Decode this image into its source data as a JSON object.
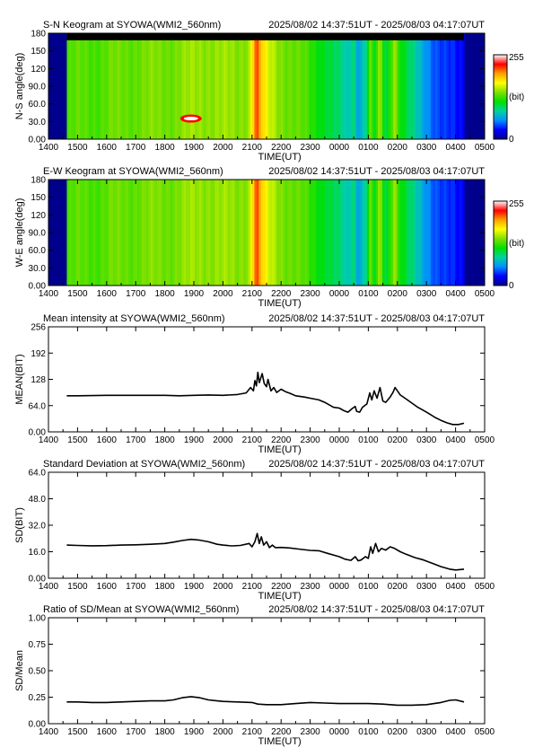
{
  "colors": {
    "axis": "#000000",
    "line": "#000000",
    "keogram_stops": [
      "#00008c",
      "#0000ff",
      "#0090ff",
      "#00d2a0",
      "#00e000",
      "#80e000",
      "#ffff00",
      "#ffa000",
      "#ff0000",
      "#ffffff"
    ]
  },
  "chart_data": [
    {
      "type": "heatmap",
      "title": "S-N Keogram at SYOWA(WMI2_560nm)",
      "time_range": "2025/08/02 14:37:51UT - 2025/08/03 04:17:07UT",
      "xlabel": "TIME(UT)",
      "ylabel": "N-S angle(deg)",
      "x_ticks": [
        "1400",
        "1500",
        "1600",
        "1700",
        "1800",
        "1900",
        "2000",
        "2100",
        "2200",
        "2300",
        "0000",
        "0100",
        "0200",
        "0300",
        "0400",
        "0500"
      ],
      "xlim_hours": [
        14,
        29
      ],
      "data_x_hours": [
        14.63,
        28.29
      ],
      "y_ticks": [
        "0.00",
        "30.0",
        "60.0",
        "90.0",
        "120",
        "150",
        "180"
      ],
      "ylim": [
        0,
        180
      ],
      "missing_y_above": 168,
      "colorbar": {
        "min_label": "0",
        "mid_label": "(bit)",
        "max_label": "255",
        "min": 0,
        "max": 255
      },
      "profile": [
        [
          14.63,
          88
        ],
        [
          15.0,
          90
        ],
        [
          16.0,
          92
        ],
        [
          17.0,
          95
        ],
        [
          18.0,
          96
        ],
        [
          18.5,
          98
        ],
        [
          19.0,
          100
        ],
        [
          19.5,
          102
        ],
        [
          20.0,
          100
        ],
        [
          20.5,
          98
        ],
        [
          20.9,
          104
        ],
        [
          21.0,
          120
        ],
        [
          21.15,
          150
        ],
        [
          21.25,
          135
        ],
        [
          21.4,
          120
        ],
        [
          21.6,
          108
        ],
        [
          22.0,
          100
        ],
        [
          22.5,
          92
        ],
        [
          23.0,
          86
        ],
        [
          23.5,
          76
        ],
        [
          24.0,
          62
        ],
        [
          24.3,
          52
        ],
        [
          24.5,
          70
        ],
        [
          24.6,
          48
        ],
        [
          24.9,
          58
        ],
        [
          25.05,
          95
        ],
        [
          25.2,
          72
        ],
        [
          25.4,
          100
        ],
        [
          25.6,
          68
        ],
        [
          25.9,
          105
        ],
        [
          26.1,
          82
        ],
        [
          26.4,
          65
        ],
        [
          26.8,
          48
        ],
        [
          27.2,
          36
        ],
        [
          27.6,
          26
        ],
        [
          28.0,
          20
        ],
        [
          28.29,
          18
        ]
      ],
      "hot_spot": {
        "x_hours": 18.9,
        "y_deg": 35
      }
    },
    {
      "type": "heatmap",
      "title": "E-W Keogram at SYOWA(WMI2_560nm)",
      "time_range": "2025/08/02 14:37:51UT - 2025/08/03 04:17:07UT",
      "xlabel": "TIME(UT)",
      "ylabel": "W-E angle(deg)",
      "x_ticks": [
        "1400",
        "1500",
        "1600",
        "1700",
        "1800",
        "1900",
        "2000",
        "2100",
        "2200",
        "2300",
        "0000",
        "0100",
        "0200",
        "0300",
        "0400",
        "0500"
      ],
      "xlim_hours": [
        14,
        29
      ],
      "data_x_hours": [
        14.63,
        28.29
      ],
      "y_ticks": [
        "0.00",
        "30.0",
        "60.0",
        "90.0",
        "120",
        "150",
        "180"
      ],
      "ylim": [
        0,
        180
      ],
      "colorbar": {
        "min_label": "0",
        "mid_label": "(bit)",
        "max_label": "255",
        "min": 0,
        "max": 255
      }
    },
    {
      "type": "line",
      "title": "Mean intensity at SYOWA(WMI2_560nm)",
      "time_range": "2025/08/02 14:37:51UT - 2025/08/03 04:17:07UT",
      "xlabel": "TIME(UT)",
      "ylabel": "MEAN(BIT)",
      "x_ticks": [
        "1400",
        "1500",
        "1600",
        "1700",
        "1800",
        "1900",
        "2000",
        "2100",
        "2200",
        "2300",
        "0000",
        "0100",
        "0200",
        "0300",
        "0400",
        "0500"
      ],
      "xlim_hours": [
        14,
        29
      ],
      "y_ticks": [
        "0.00",
        "64.0",
        "128",
        "192",
        "256"
      ],
      "ylim": [
        0,
        256
      ],
      "series": [
        {
          "points": [
            [
              14.63,
              88
            ],
            [
              15.0,
              88
            ],
            [
              16.0,
              89
            ],
            [
              17.0,
              89
            ],
            [
              18.0,
              89
            ],
            [
              18.5,
              88
            ],
            [
              19.0,
              89
            ],
            [
              19.5,
              90
            ],
            [
              20.0,
              89
            ],
            [
              20.5,
              91
            ],
            [
              20.8,
              95
            ],
            [
              20.95,
              108
            ],
            [
              21.05,
              100
            ],
            [
              21.1,
              125
            ],
            [
              21.15,
              112
            ],
            [
              21.2,
              145
            ],
            [
              21.25,
              120
            ],
            [
              21.35,
              142
            ],
            [
              21.42,
              118
            ],
            [
              21.5,
              110
            ],
            [
              21.55,
              128
            ],
            [
              21.65,
              100
            ],
            [
              21.75,
              108
            ],
            [
              21.85,
              96
            ],
            [
              22.0,
              104
            ],
            [
              22.15,
              98
            ],
            [
              22.3,
              94
            ],
            [
              22.5,
              88
            ],
            [
              22.8,
              85
            ],
            [
              23.0,
              82
            ],
            [
              23.3,
              78
            ],
            [
              23.5,
              72
            ],
            [
              23.8,
              60
            ],
            [
              24.0,
              58
            ],
            [
              24.15,
              52
            ],
            [
              24.3,
              48
            ],
            [
              24.45,
              57
            ],
            [
              24.55,
              62
            ],
            [
              24.6,
              50
            ],
            [
              24.7,
              48
            ],
            [
              24.8,
              60
            ],
            [
              24.95,
              68
            ],
            [
              25.05,
              95
            ],
            [
              25.12,
              78
            ],
            [
              25.2,
              100
            ],
            [
              25.3,
              82
            ],
            [
              25.4,
              108
            ],
            [
              25.5,
              75
            ],
            [
              25.6,
              72
            ],
            [
              25.75,
              85
            ],
            [
              25.85,
              96
            ],
            [
              25.92,
              108
            ],
            [
              26.0,
              100
            ],
            [
              26.1,
              90
            ],
            [
              26.3,
              80
            ],
            [
              26.5,
              70
            ],
            [
              26.7,
              60
            ],
            [
              26.9,
              52
            ],
            [
              27.1,
              44
            ],
            [
              27.3,
              35
            ],
            [
              27.5,
              28
            ],
            [
              27.7,
              22
            ],
            [
              27.9,
              18
            ],
            [
              28.1,
              18
            ],
            [
              28.29,
              21
            ]
          ]
        }
      ]
    },
    {
      "type": "line",
      "title": "Standard Deviation at SYOWA(WMI2_560nm)",
      "time_range": "2025/08/02 14:37:51UT - 2025/08/03 04:17:07UT",
      "xlabel": "TIME(UT)",
      "ylabel": "SD(BIT)",
      "x_ticks": [
        "1400",
        "1500",
        "1600",
        "1700",
        "1800",
        "1900",
        "2000",
        "2100",
        "2200",
        "2300",
        "0000",
        "0100",
        "0200",
        "0300",
        "0400",
        "0500"
      ],
      "xlim_hours": [
        14,
        29
      ],
      "y_ticks": [
        "0.00",
        "16.0",
        "32.0",
        "48.0",
        "64.0"
      ],
      "ylim": [
        0,
        64
      ],
      "series": [
        {
          "points": [
            [
              14.63,
              20
            ],
            [
              15.0,
              19.8
            ],
            [
              15.5,
              19.6
            ],
            [
              16.0,
              19.7
            ],
            [
              16.5,
              20
            ],
            [
              17.0,
              20.2
            ],
            [
              17.5,
              20.5
            ],
            [
              18.0,
              21
            ],
            [
              18.3,
              21.8
            ],
            [
              18.6,
              22.8
            ],
            [
              18.9,
              23.5
            ],
            [
              19.2,
              23
            ],
            [
              19.5,
              22
            ],
            [
              19.8,
              20.5
            ],
            [
              20.0,
              20
            ],
            [
              20.3,
              19.5
            ],
            [
              20.6,
              19.8
            ],
            [
              20.9,
              21
            ],
            [
              21.0,
              19
            ],
            [
              21.1,
              22
            ],
            [
              21.18,
              27
            ],
            [
              21.25,
              21
            ],
            [
              21.32,
              25
            ],
            [
              21.4,
              20
            ],
            [
              21.5,
              22
            ],
            [
              21.6,
              18.5
            ],
            [
              21.7,
              20
            ],
            [
              21.8,
              18.5
            ],
            [
              22.0,
              18.6
            ],
            [
              22.3,
              18.3
            ],
            [
              22.6,
              17.6
            ],
            [
              23.0,
              16.8
            ],
            [
              23.3,
              16.6
            ],
            [
              23.6,
              15
            ],
            [
              24.0,
              13
            ],
            [
              24.2,
              11.5
            ],
            [
              24.4,
              10.8
            ],
            [
              24.55,
              13
            ],
            [
              24.65,
              10.5
            ],
            [
              24.75,
              11
            ],
            [
              24.9,
              13
            ],
            [
              25.0,
              12
            ],
            [
              25.08,
              19
            ],
            [
              25.15,
              15
            ],
            [
              25.25,
              21
            ],
            [
              25.35,
              16
            ],
            [
              25.45,
              18
            ],
            [
              25.6,
              17
            ],
            [
              25.75,
              19
            ],
            [
              25.9,
              18
            ],
            [
              26.1,
              16
            ],
            [
              26.3,
              14.5
            ],
            [
              26.6,
              12.5
            ],
            [
              26.9,
              11
            ],
            [
              27.2,
              9
            ],
            [
              27.5,
              7
            ],
            [
              27.8,
              5.5
            ],
            [
              28.0,
              5
            ],
            [
              28.29,
              5.5
            ]
          ]
        }
      ]
    },
    {
      "type": "line",
      "title": "Ratio of SD/Mean at SYOWA(WMI2_560nm)",
      "time_range": "2025/08/02 14:37:51UT - 2025/08/03 04:17:07UT",
      "xlabel": "TIME(UT)",
      "ylabel": "SD/Mean",
      "x_ticks": [
        "1400",
        "1500",
        "1600",
        "1700",
        "1800",
        "1900",
        "2000",
        "2100",
        "2200",
        "2300",
        "0000",
        "0100",
        "0200",
        "0300",
        "0400",
        "0500"
      ],
      "xlim_hours": [
        14,
        29
      ],
      "y_ticks": [
        "0.00",
        "0.25",
        "0.50",
        "0.75",
        "1.00"
      ],
      "ylim": [
        0,
        1
      ],
      "series": [
        {
          "points": [
            [
              14.63,
              0.205
            ],
            [
              15.0,
              0.205
            ],
            [
              15.5,
              0.2
            ],
            [
              16.0,
              0.2
            ],
            [
              16.5,
              0.205
            ],
            [
              17.0,
              0.21
            ],
            [
              17.5,
              0.215
            ],
            [
              18.0,
              0.215
            ],
            [
              18.3,
              0.225
            ],
            [
              18.6,
              0.245
            ],
            [
              18.9,
              0.255
            ],
            [
              19.2,
              0.245
            ],
            [
              19.5,
              0.225
            ],
            [
              19.8,
              0.215
            ],
            [
              20.0,
              0.21
            ],
            [
              20.5,
              0.205
            ],
            [
              21.0,
              0.2
            ],
            [
              21.2,
              0.185
            ],
            [
              21.5,
              0.18
            ],
            [
              22.0,
              0.18
            ],
            [
              22.5,
              0.19
            ],
            [
              23.0,
              0.2
            ],
            [
              23.5,
              0.195
            ],
            [
              24.0,
              0.19
            ],
            [
              24.5,
              0.19
            ],
            [
              25.0,
              0.19
            ],
            [
              25.5,
              0.185
            ],
            [
              26.0,
              0.175
            ],
            [
              26.5,
              0.175
            ],
            [
              27.0,
              0.18
            ],
            [
              27.5,
              0.2
            ],
            [
              27.8,
              0.22
            ],
            [
              28.0,
              0.225
            ],
            [
              28.29,
              0.205
            ]
          ]
        }
      ]
    }
  ]
}
